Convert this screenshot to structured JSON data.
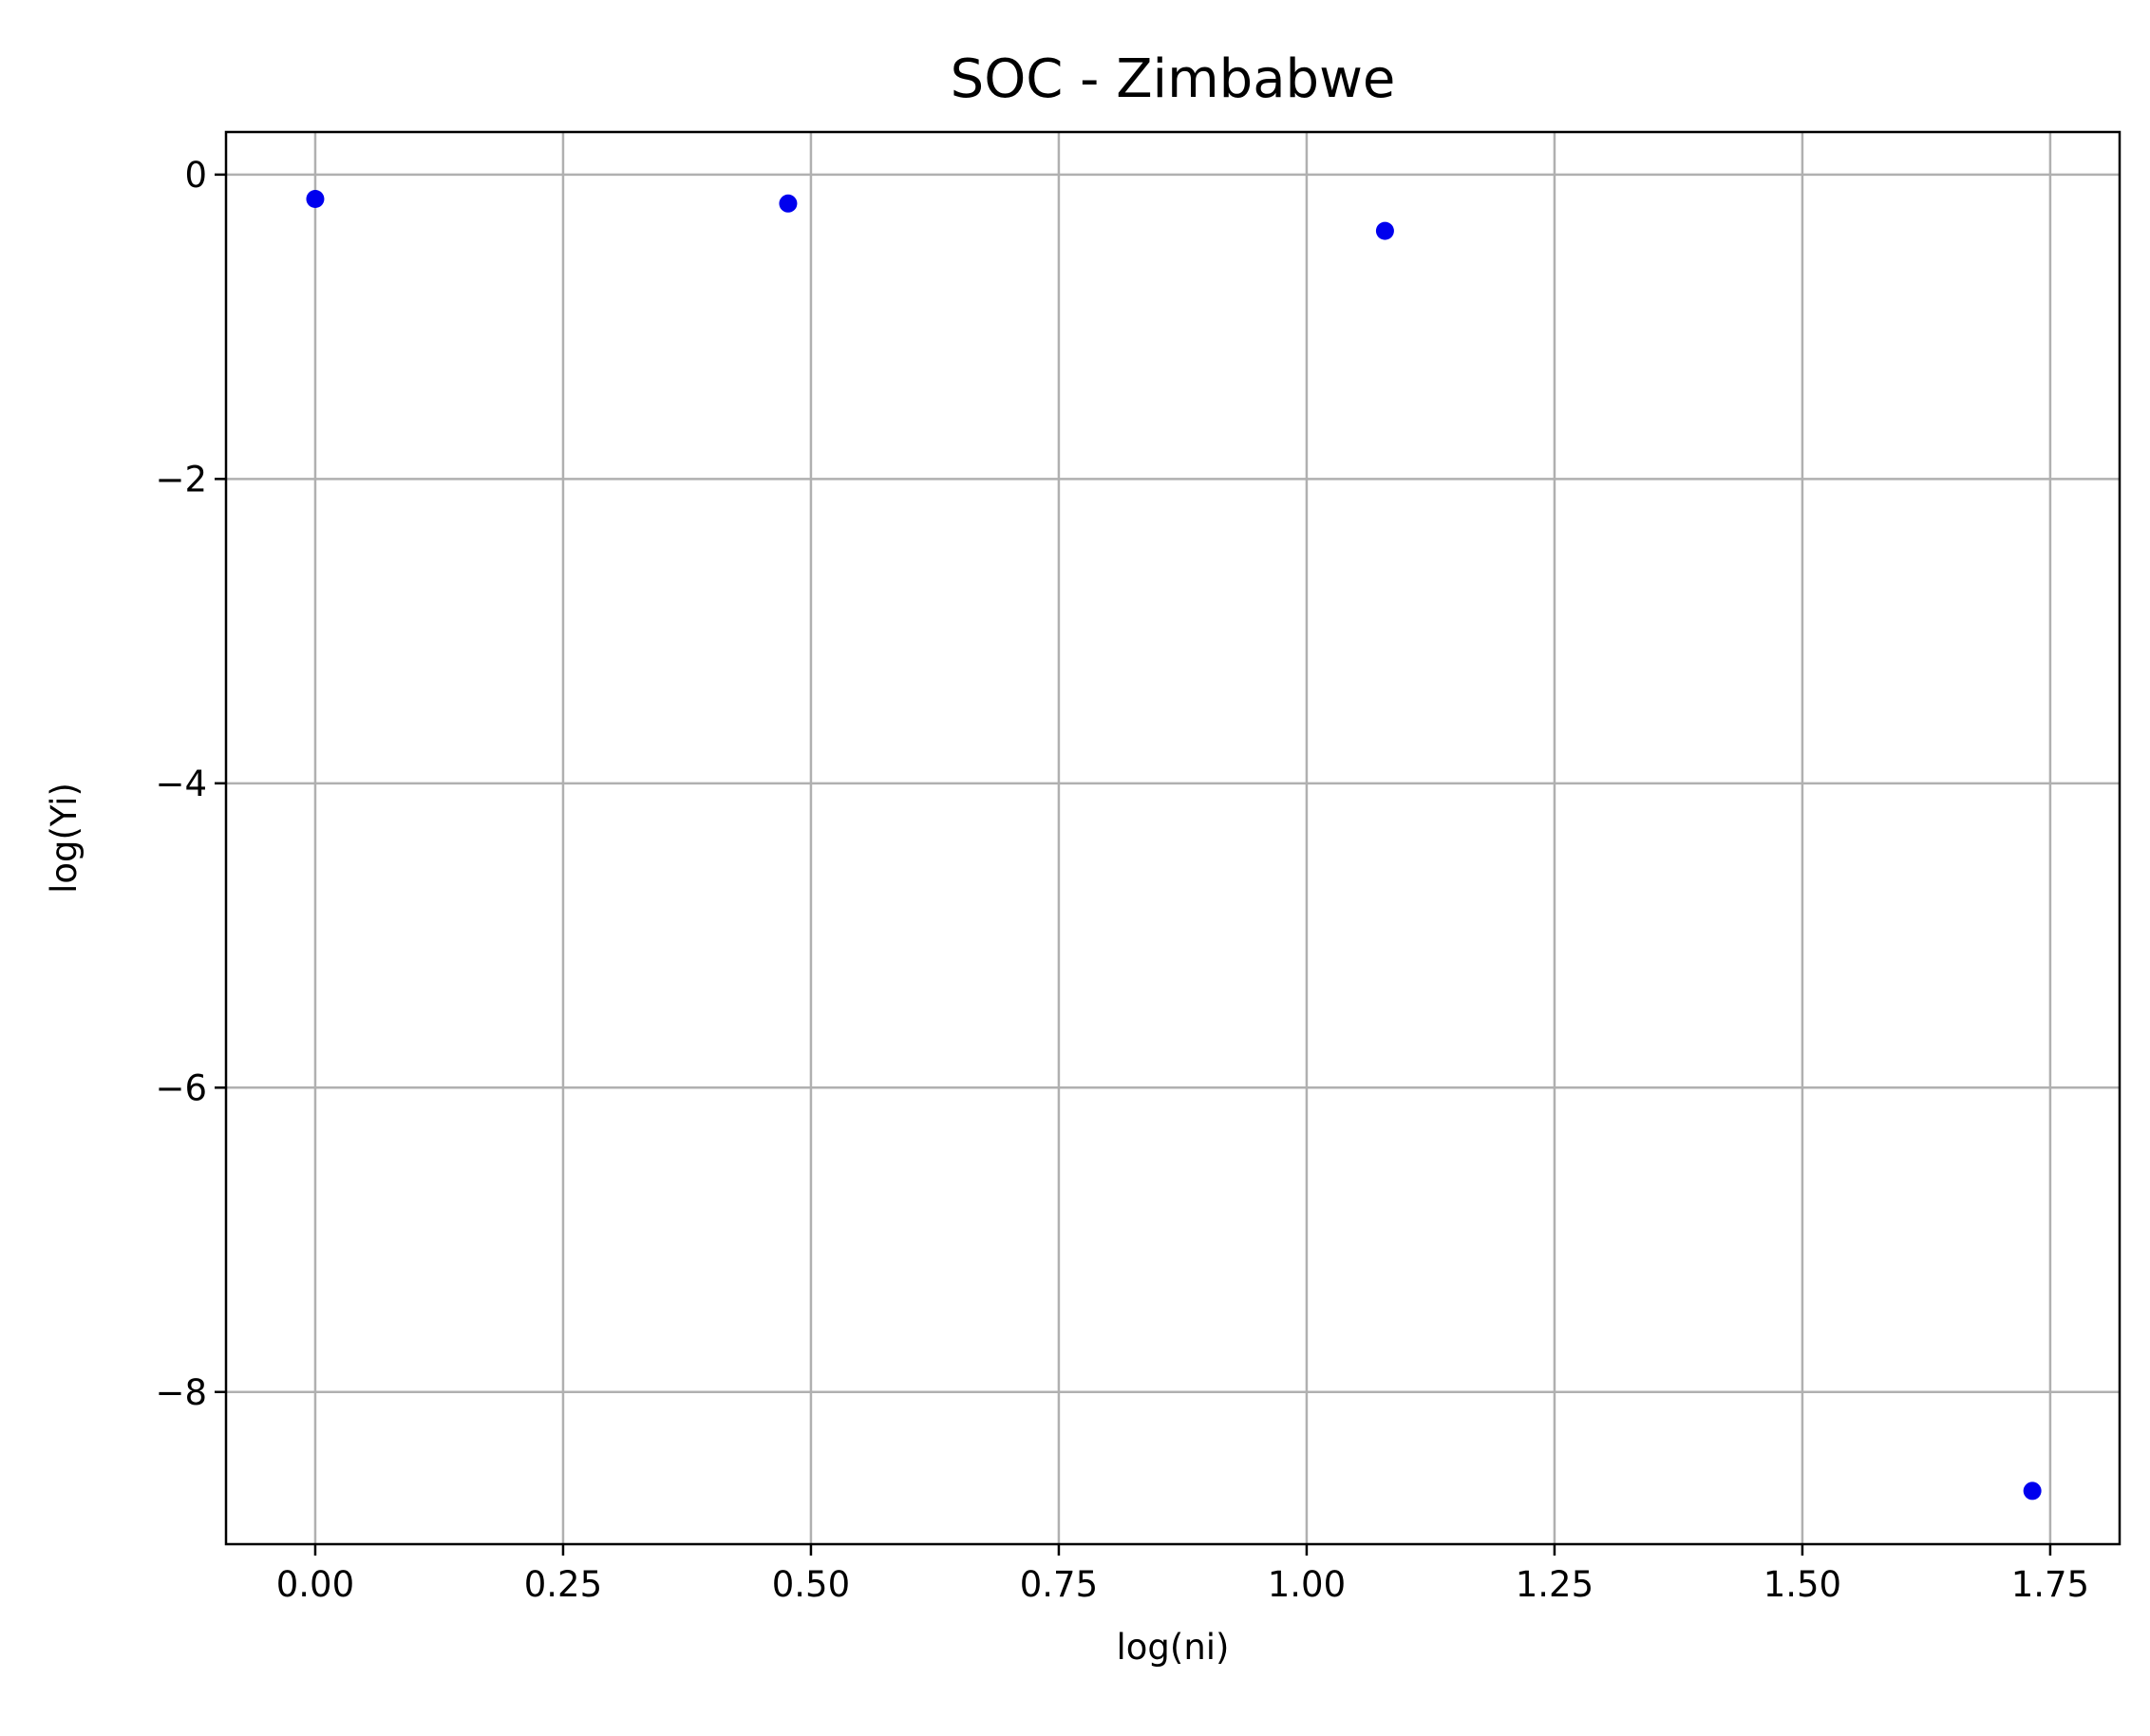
{
  "chart_data": {
    "type": "scatter",
    "title": "SOC - Zimbabwe",
    "xlabel": "log(ni)",
    "ylabel": "log(Yi)",
    "xlim": [
      -0.09,
      1.82
    ],
    "ylim": [
      -9.0,
      0.28
    ],
    "xticks": [
      0.0,
      0.25,
      0.5,
      0.75,
      1.0,
      1.25,
      1.5,
      1.75
    ],
    "xtick_labels": [
      "0.00",
      "0.25",
      "0.50",
      "0.75",
      "1.00",
      "1.25",
      "1.50",
      "1.75"
    ],
    "yticks": [
      0,
      -2,
      -4,
      -6,
      -8
    ],
    "ytick_labels": [
      "0",
      "−2",
      "−4",
      "−6",
      "−8"
    ],
    "grid": true,
    "point_color": "#0000ee",
    "series": [
      {
        "points": [
          {
            "x": 0.0,
            "y": -0.16
          },
          {
            "x": 0.477,
            "y": -0.19
          },
          {
            "x": 1.079,
            "y": -0.37
          },
          {
            "x": 1.732,
            "y": -8.65
          }
        ]
      }
    ]
  }
}
